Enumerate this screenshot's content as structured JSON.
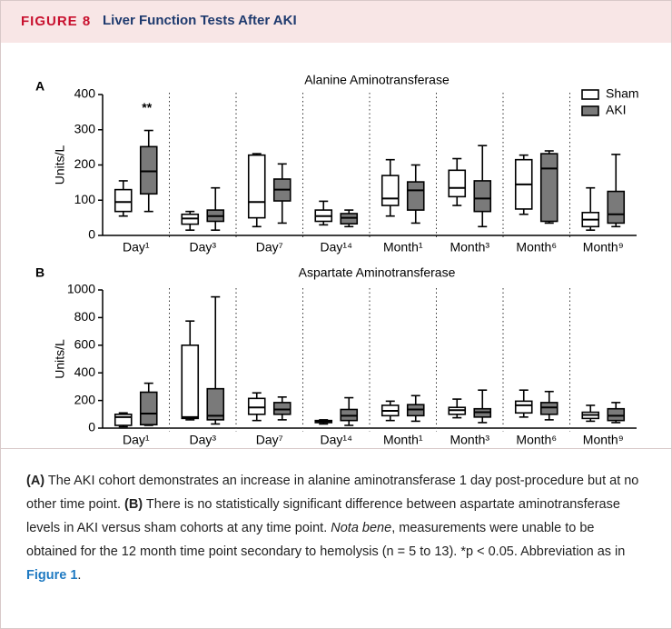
{
  "header": {
    "label": "FIGURE 8",
    "title": "Liver Function Tests After AKI"
  },
  "chart_data": [
    {
      "type": "box",
      "panel": "A",
      "title": "Alanine Aminotransferase",
      "y_label": "Units/L",
      "categories": [
        "Day¹",
        "Day³",
        "Day⁷",
        "Day¹⁴",
        "Month¹",
        "Month³",
        "Month⁶",
        "Month⁹"
      ],
      "ylim": [
        0,
        400
      ],
      "yticks": [
        0,
        100,
        200,
        300,
        400
      ],
      "grid": false,
      "legend": "top-right",
      "annotation": "**",
      "series": [
        {
          "name": "Sham",
          "color": "#ffffff",
          "values": [
            {
              "min": 55,
              "q1": 68,
              "median": 95,
              "q3": 130,
              "max": 155
            },
            {
              "min": 15,
              "q1": 32,
              "median": 48,
              "q3": 60,
              "max": 68
            },
            {
              "min": 25,
              "q1": 50,
              "median": 95,
              "q3": 228,
              "max": 232
            },
            {
              "min": 30,
              "q1": 40,
              "median": 55,
              "q3": 72,
              "max": 97
            },
            {
              "min": 55,
              "q1": 85,
              "median": 105,
              "q3": 170,
              "max": 215
            },
            {
              "min": 85,
              "q1": 110,
              "median": 135,
              "q3": 185,
              "max": 218
            },
            {
              "min": 60,
              "q1": 75,
              "median": 145,
              "q3": 215,
              "max": 228
            },
            {
              "min": 15,
              "q1": 25,
              "median": 45,
              "q3": 65,
              "max": 135
            }
          ]
        },
        {
          "name": "AKI",
          "color": "#7a7a7a",
          "values": [
            {
              "min": 68,
              "q1": 118,
              "median": 182,
              "q3": 252,
              "max": 298
            },
            {
              "min": 15,
              "q1": 40,
              "median": 55,
              "q3": 72,
              "max": 135
            },
            {
              "min": 35,
              "q1": 98,
              "median": 130,
              "q3": 160,
              "max": 203
            },
            {
              "min": 25,
              "q1": 33,
              "median": 50,
              "q3": 62,
              "max": 72
            },
            {
              "min": 35,
              "q1": 72,
              "median": 128,
              "q3": 152,
              "max": 200
            },
            {
              "min": 25,
              "q1": 68,
              "median": 105,
              "q3": 155,
              "max": 255
            },
            {
              "min": 35,
              "q1": 40,
              "median": 190,
              "q3": 232,
              "max": 240
            },
            {
              "min": 25,
              "q1": 35,
              "median": 60,
              "q3": 125,
              "max": 230
            }
          ]
        }
      ]
    },
    {
      "type": "box",
      "panel": "B",
      "title": "Aspartate Aminotransferase",
      "y_label": "Units/L",
      "categories": [
        "Day¹",
        "Day³",
        "Day⁷",
        "Day¹⁴",
        "Month¹",
        "Month³",
        "Month⁶",
        "Month⁹"
      ],
      "ylim": [
        0,
        1000
      ],
      "yticks": [
        0,
        200,
        400,
        600,
        800,
        1000
      ],
      "grid": false,
      "series": [
        {
          "name": "Sham",
          "color": "#ffffff",
          "values": [
            {
              "min": 10,
              "q1": 20,
              "median": 80,
              "q3": 100,
              "max": 110
            },
            {
              "min": 60,
              "q1": 70,
              "median": 80,
              "q3": 600,
              "max": 775
            },
            {
              "min": 55,
              "q1": 100,
              "median": 150,
              "q3": 215,
              "max": 255
            },
            {
              "min": 30,
              "q1": 40,
              "median": 48,
              "q3": 55,
              "max": 60
            },
            {
              "min": 55,
              "q1": 90,
              "median": 125,
              "q3": 165,
              "max": 195
            },
            {
              "min": 75,
              "q1": 100,
              "median": 130,
              "q3": 150,
              "max": 210
            },
            {
              "min": 80,
              "q1": 110,
              "median": 165,
              "q3": 195,
              "max": 275
            },
            {
              "min": 50,
              "q1": 70,
              "median": 95,
              "q3": 115,
              "max": 165
            }
          ]
        },
        {
          "name": "AKI",
          "color": "#7a7a7a",
          "values": [
            {
              "min": 20,
              "q1": 25,
              "median": 105,
              "q3": 260,
              "max": 325
            },
            {
              "min": 30,
              "q1": 60,
              "median": 90,
              "q3": 285,
              "max": 950
            },
            {
              "min": 60,
              "q1": 100,
              "median": 135,
              "q3": 185,
              "max": 225
            },
            {
              "min": 20,
              "q1": 55,
              "median": 90,
              "q3": 135,
              "max": 220
            },
            {
              "min": 50,
              "q1": 90,
              "median": 135,
              "q3": 170,
              "max": 235
            },
            {
              "min": 40,
              "q1": 80,
              "median": 115,
              "q3": 140,
              "max": 275
            },
            {
              "min": 60,
              "q1": 100,
              "median": 150,
              "q3": 185,
              "max": 265
            },
            {
              "min": 40,
              "q1": 55,
              "median": 90,
              "q3": 140,
              "max": 185
            }
          ]
        }
      ]
    }
  ],
  "caption": [
    {
      "text": "(A)",
      "style": "bold"
    },
    {
      "text": " The AKI cohort demonstrates an increase in alanine aminotransferase 1 day post-procedure but at no other time point. ",
      "style": "normal"
    },
    {
      "text": "(B)",
      "style": "bold"
    },
    {
      "text": " There is no statistically significant difference between aspartate aminotransferase levels in AKI versus sham cohorts at any time point. ",
      "style": "normal"
    },
    {
      "text": "Nota bene",
      "style": "italic"
    },
    {
      "text": ", measurements were unable to be obtained for the 12 month time point secondary to hemolysis (n = 5 to 13). *p < 0.05. Abbreviation as in ",
      "style": "normal"
    },
    {
      "text": "Figure 1",
      "style": "link"
    },
    {
      "text": ".",
      "style": "normal"
    }
  ]
}
